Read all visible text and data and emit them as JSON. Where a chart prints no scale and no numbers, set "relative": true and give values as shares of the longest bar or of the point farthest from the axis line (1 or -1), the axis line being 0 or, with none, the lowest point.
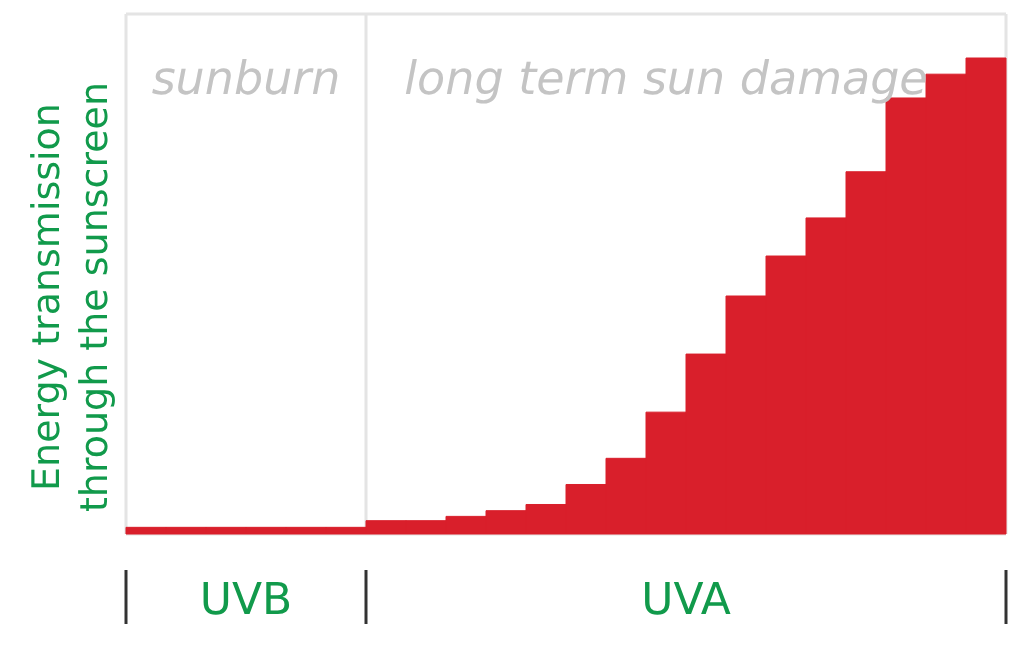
{
  "chart_data": {
    "type": "bar",
    "relative": true,
    "ylabel": "Energy transmission through the sunscreen",
    "color": "#d91f2b",
    "categories": [
      null,
      null,
      null,
      null,
      null,
      null,
      null,
      null,
      null,
      null,
      null,
      null,
      null,
      null,
      null,
      null,
      null,
      null,
      null,
      null,
      null,
      null
    ],
    "values": [
      0.014,
      0.014,
      0.014,
      0.014,
      0.014,
      0.014,
      0.028,
      0.028,
      0.037,
      0.049,
      0.062,
      0.104,
      0.159,
      0.256,
      0.378,
      0.5,
      0.584,
      0.664,
      0.761,
      0.916,
      0.966,
      1
    ],
    "annotations": [
      "sunburn",
      "long term sun damage",
      "UVB",
      "UVA"
    ]
  }
}
